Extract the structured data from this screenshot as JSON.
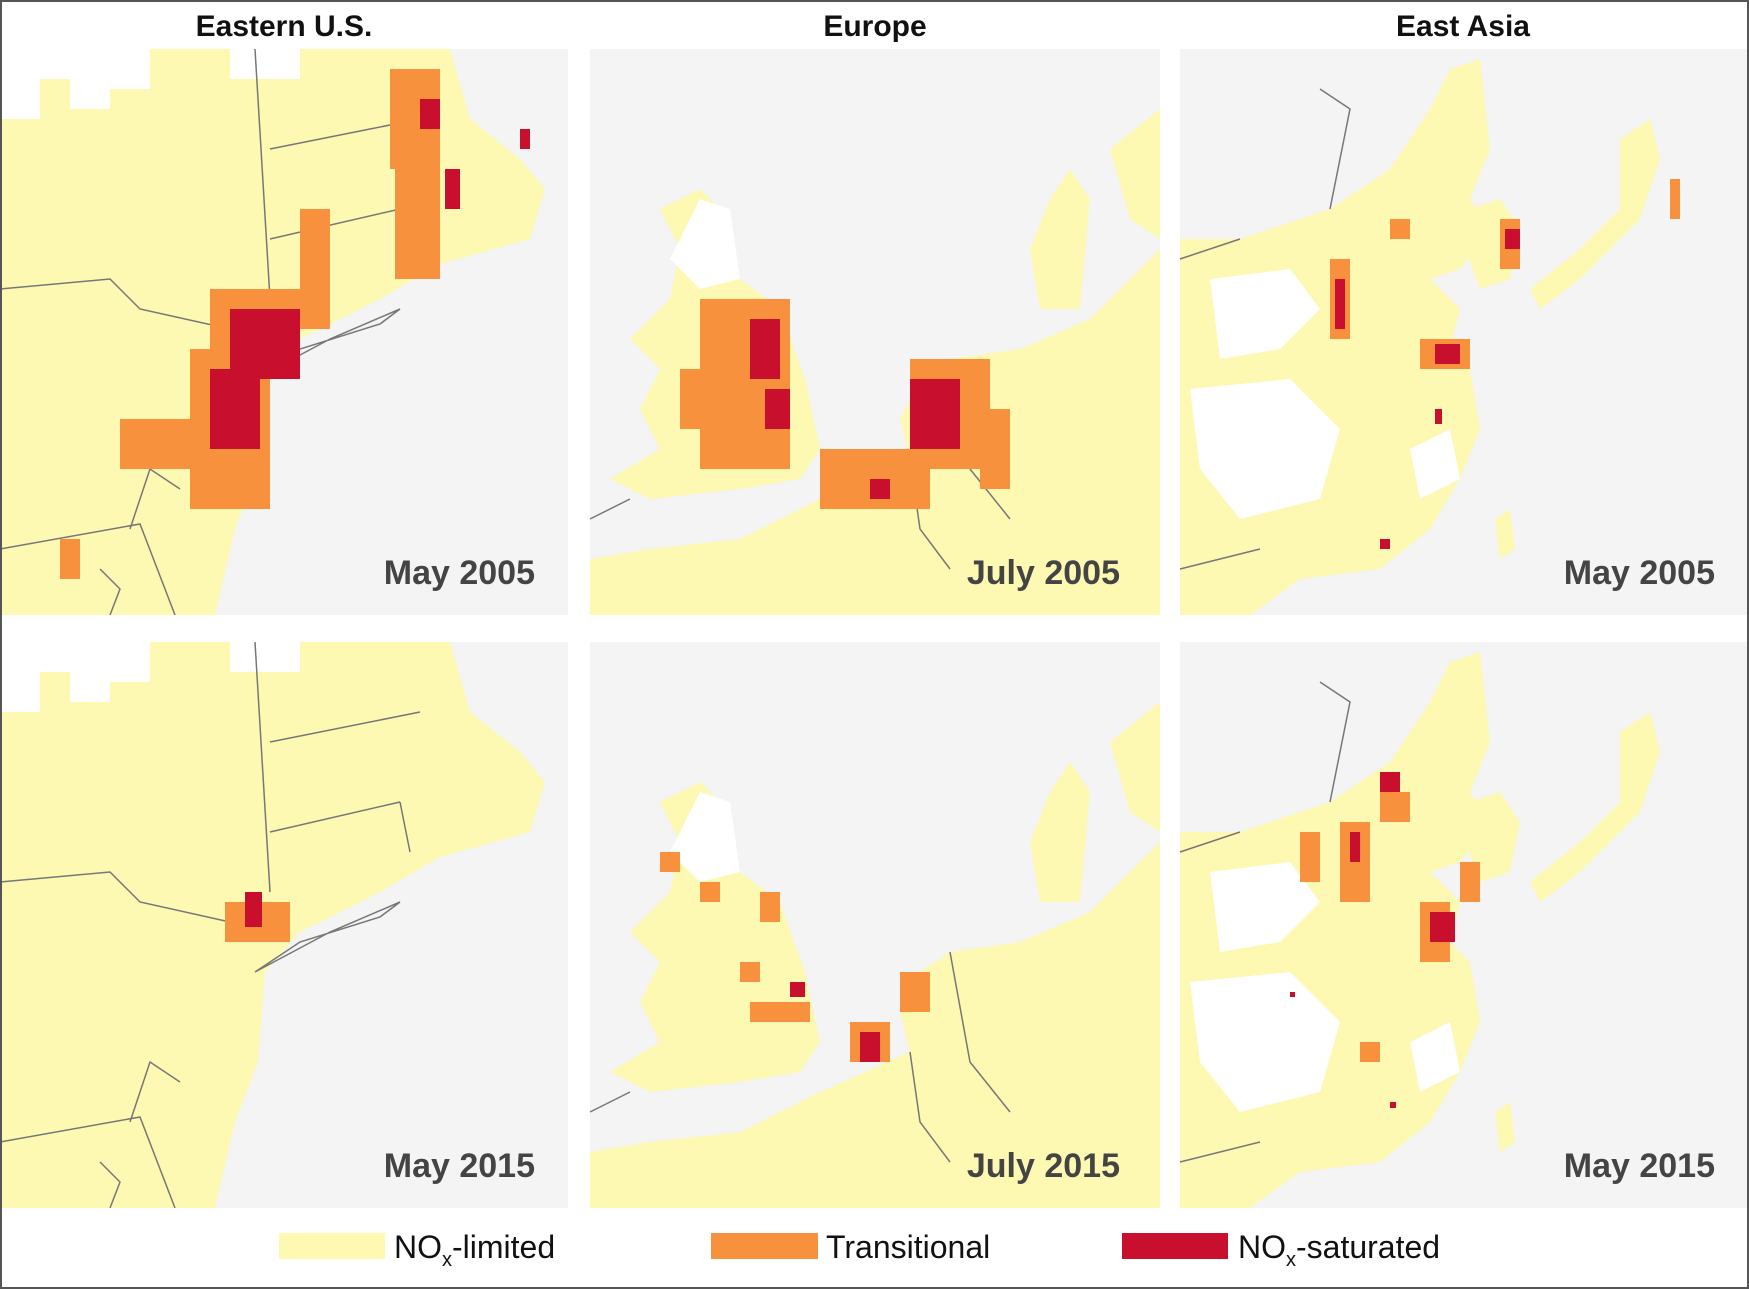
{
  "columns": [
    "Eastern U.S.",
    "Europe",
    "East Asia"
  ],
  "panels": [
    [
      "May 2005",
      "July 2005",
      "May 2005"
    ],
    [
      "May 2015",
      "July 2015",
      "May 2015"
    ]
  ],
  "legend": [
    {
      "parts": [
        "NO",
        "x",
        "-limited"
      ]
    },
    {
      "label": "Transitional"
    },
    {
      "parts": [
        "NO",
        "x",
        "-saturated"
      ]
    }
  ]
}
